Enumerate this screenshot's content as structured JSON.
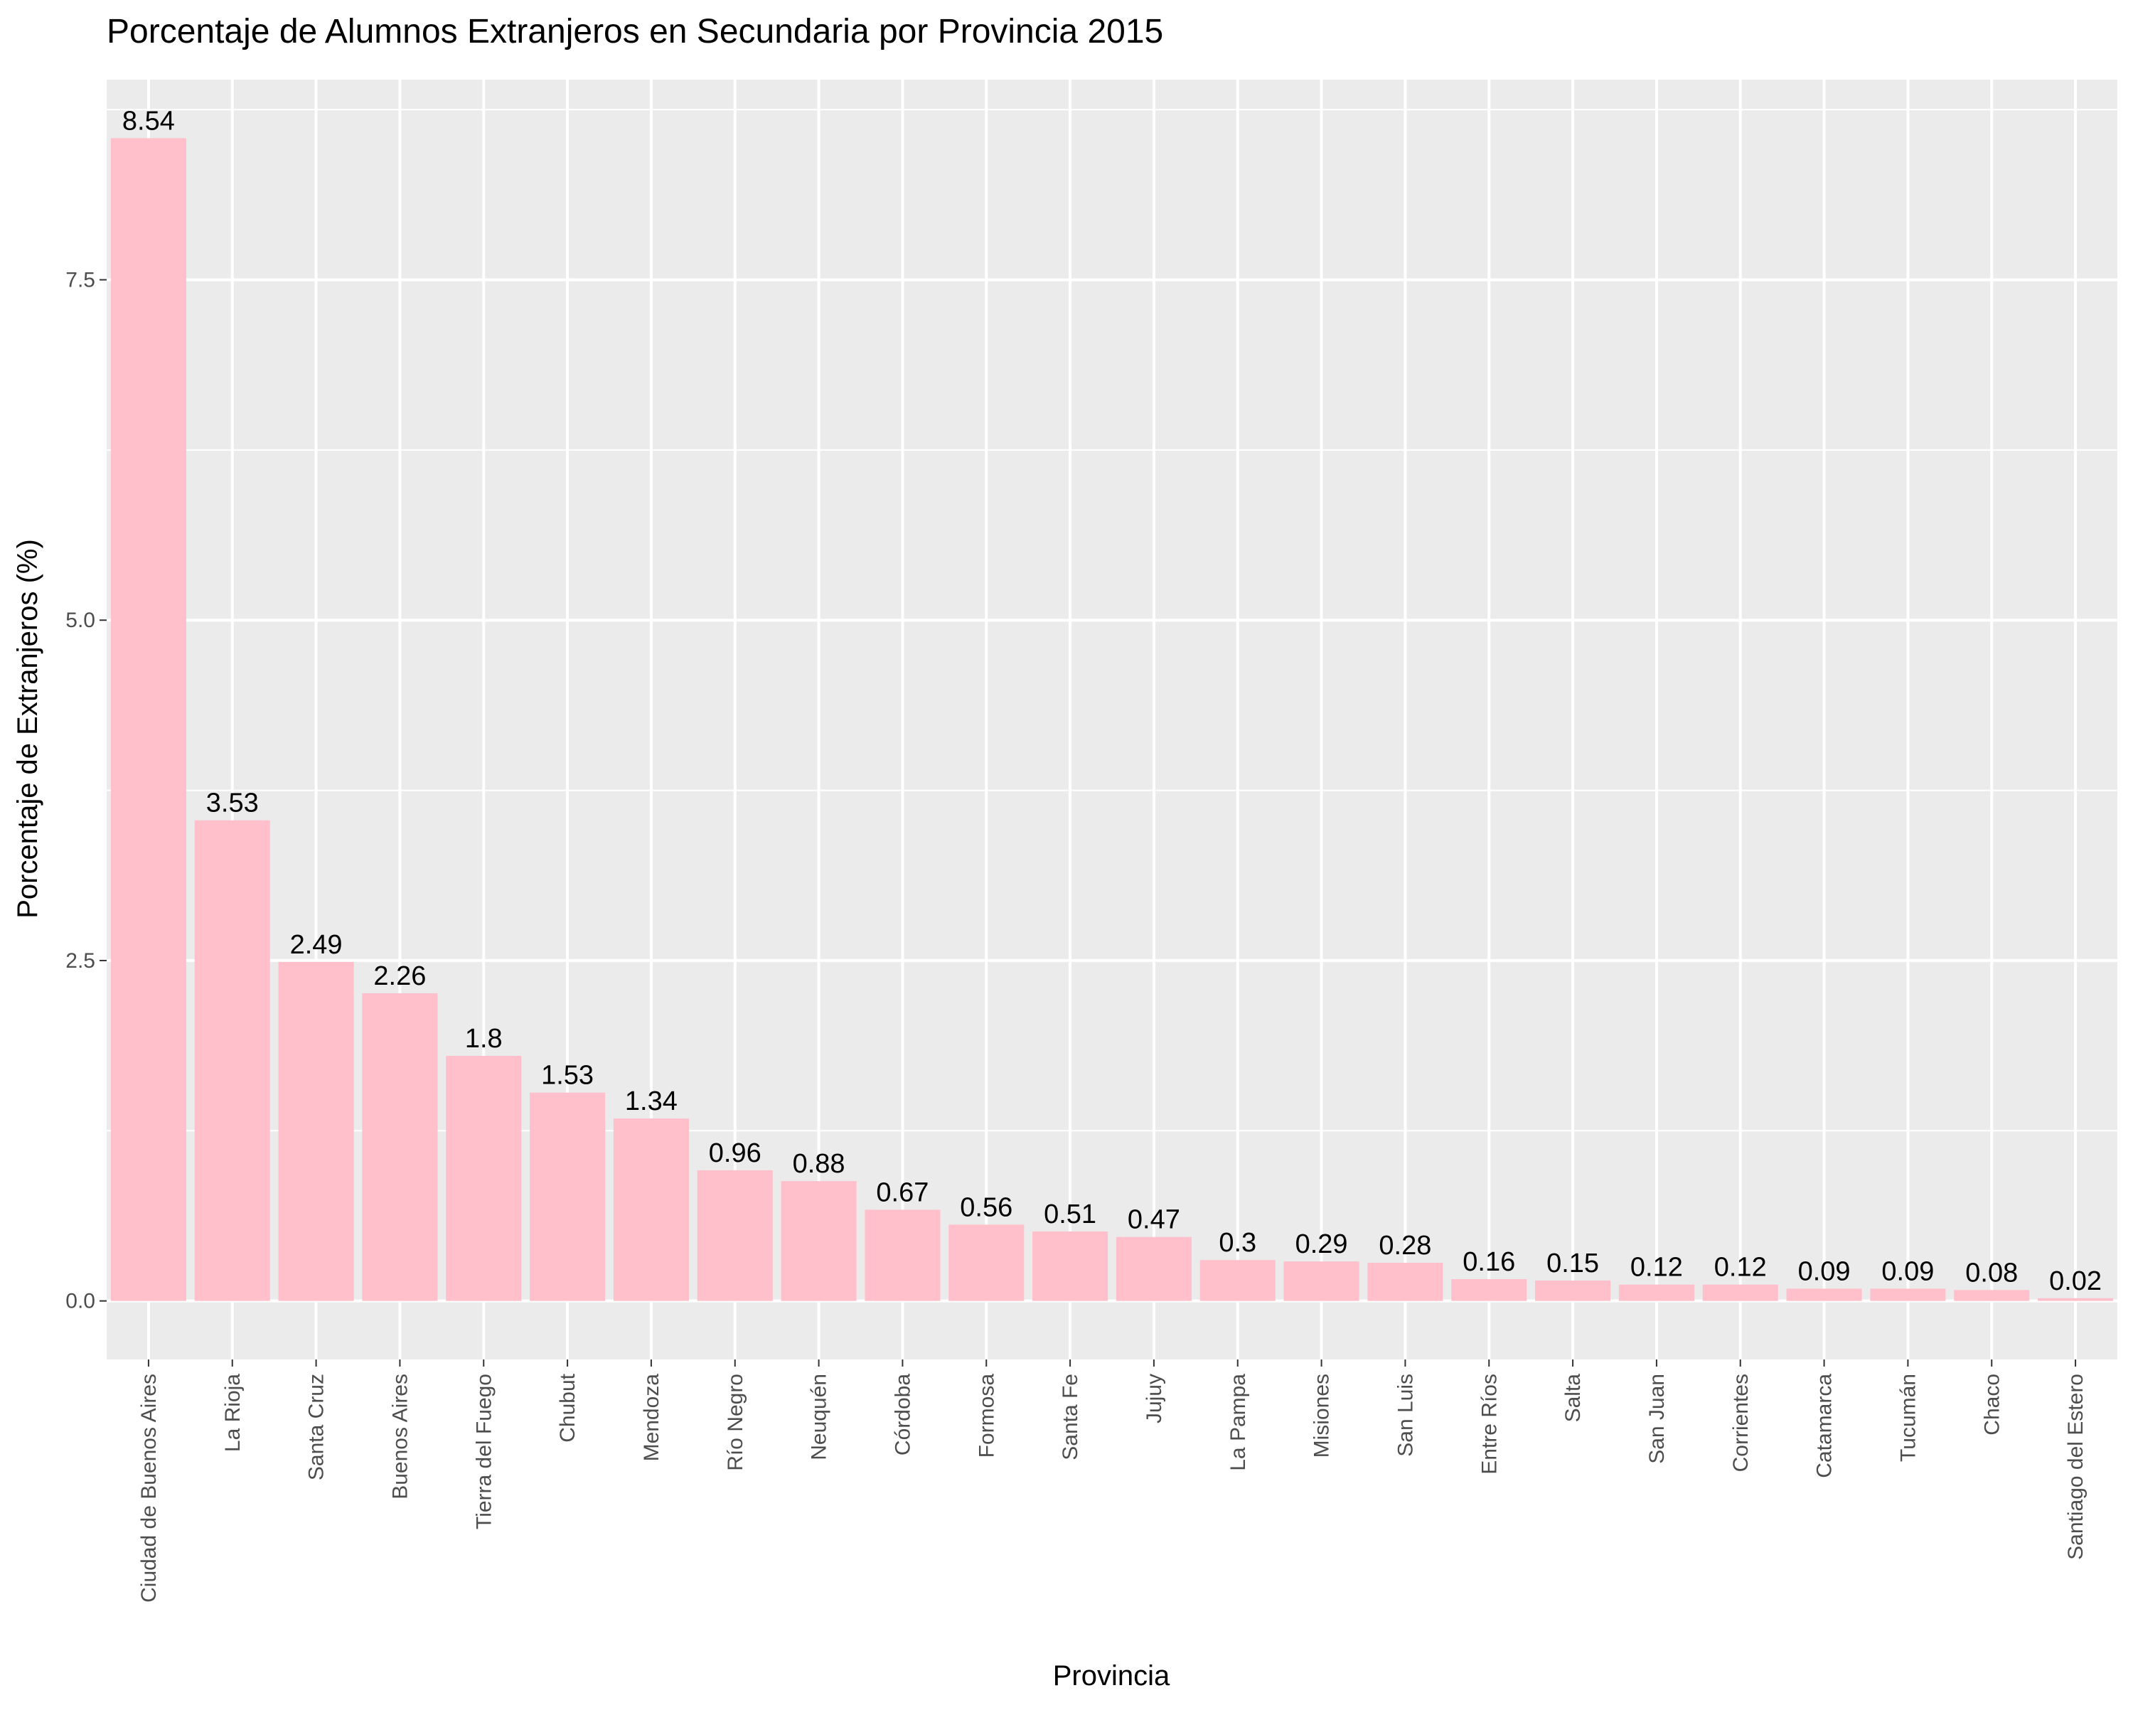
{
  "chart_data": {
    "type": "bar",
    "title": "Porcentaje de Alumnos Extranjeros en Secundaria por Provincia 2015",
    "xlabel": "Provincia",
    "ylabel": "Porcentaje de Extranjeros (%)",
    "ylim": [
      -0.43,
      8.97
    ],
    "yticks": [
      0,
      2.5,
      5,
      7.5
    ],
    "ytick_labels": [
      "0.0",
      "2.5",
      "5.0",
      "7.5"
    ],
    "grid": true,
    "legend": "none",
    "categories": [
      "Ciudad de Buenos Aires",
      "La Rioja",
      "Santa Cruz",
      "Buenos Aires",
      "Tierra del Fuego",
      "Chubut",
      "Mendoza",
      "Río Negro",
      "Neuquén",
      "Córdoba",
      "Formosa",
      "Santa Fe",
      "Jujuy",
      "La Pampa",
      "Misiones",
      "San Luis",
      "Entre Ríos",
      "Salta",
      "San Juan",
      "Corrientes",
      "Catamarca",
      "Tucumán",
      "Chaco",
      "Santiago del Estero"
    ],
    "values": [
      8.54,
      3.53,
      2.49,
      2.26,
      1.8,
      1.53,
      1.34,
      0.96,
      0.88,
      0.67,
      0.56,
      0.51,
      0.47,
      0.3,
      0.29,
      0.28,
      0.16,
      0.15,
      0.12,
      0.12,
      0.09,
      0.09,
      0.08,
      0.02
    ],
    "value_labels": [
      "8.54",
      "3.53",
      "2.49",
      "2.26",
      "1.8",
      "1.53",
      "1.34",
      "0.96",
      "0.88",
      "0.67",
      "0.56",
      "0.51",
      "0.47",
      "0.3",
      "0.29",
      "0.28",
      "0.16",
      "0.15",
      "0.12",
      "0.12",
      "0.09",
      "0.09",
      "0.08",
      "0.02"
    ],
    "bar_color": "#FFC0CB",
    "panel_background": "#EBEBEB",
    "grid_color": "#FFFFFF"
  }
}
